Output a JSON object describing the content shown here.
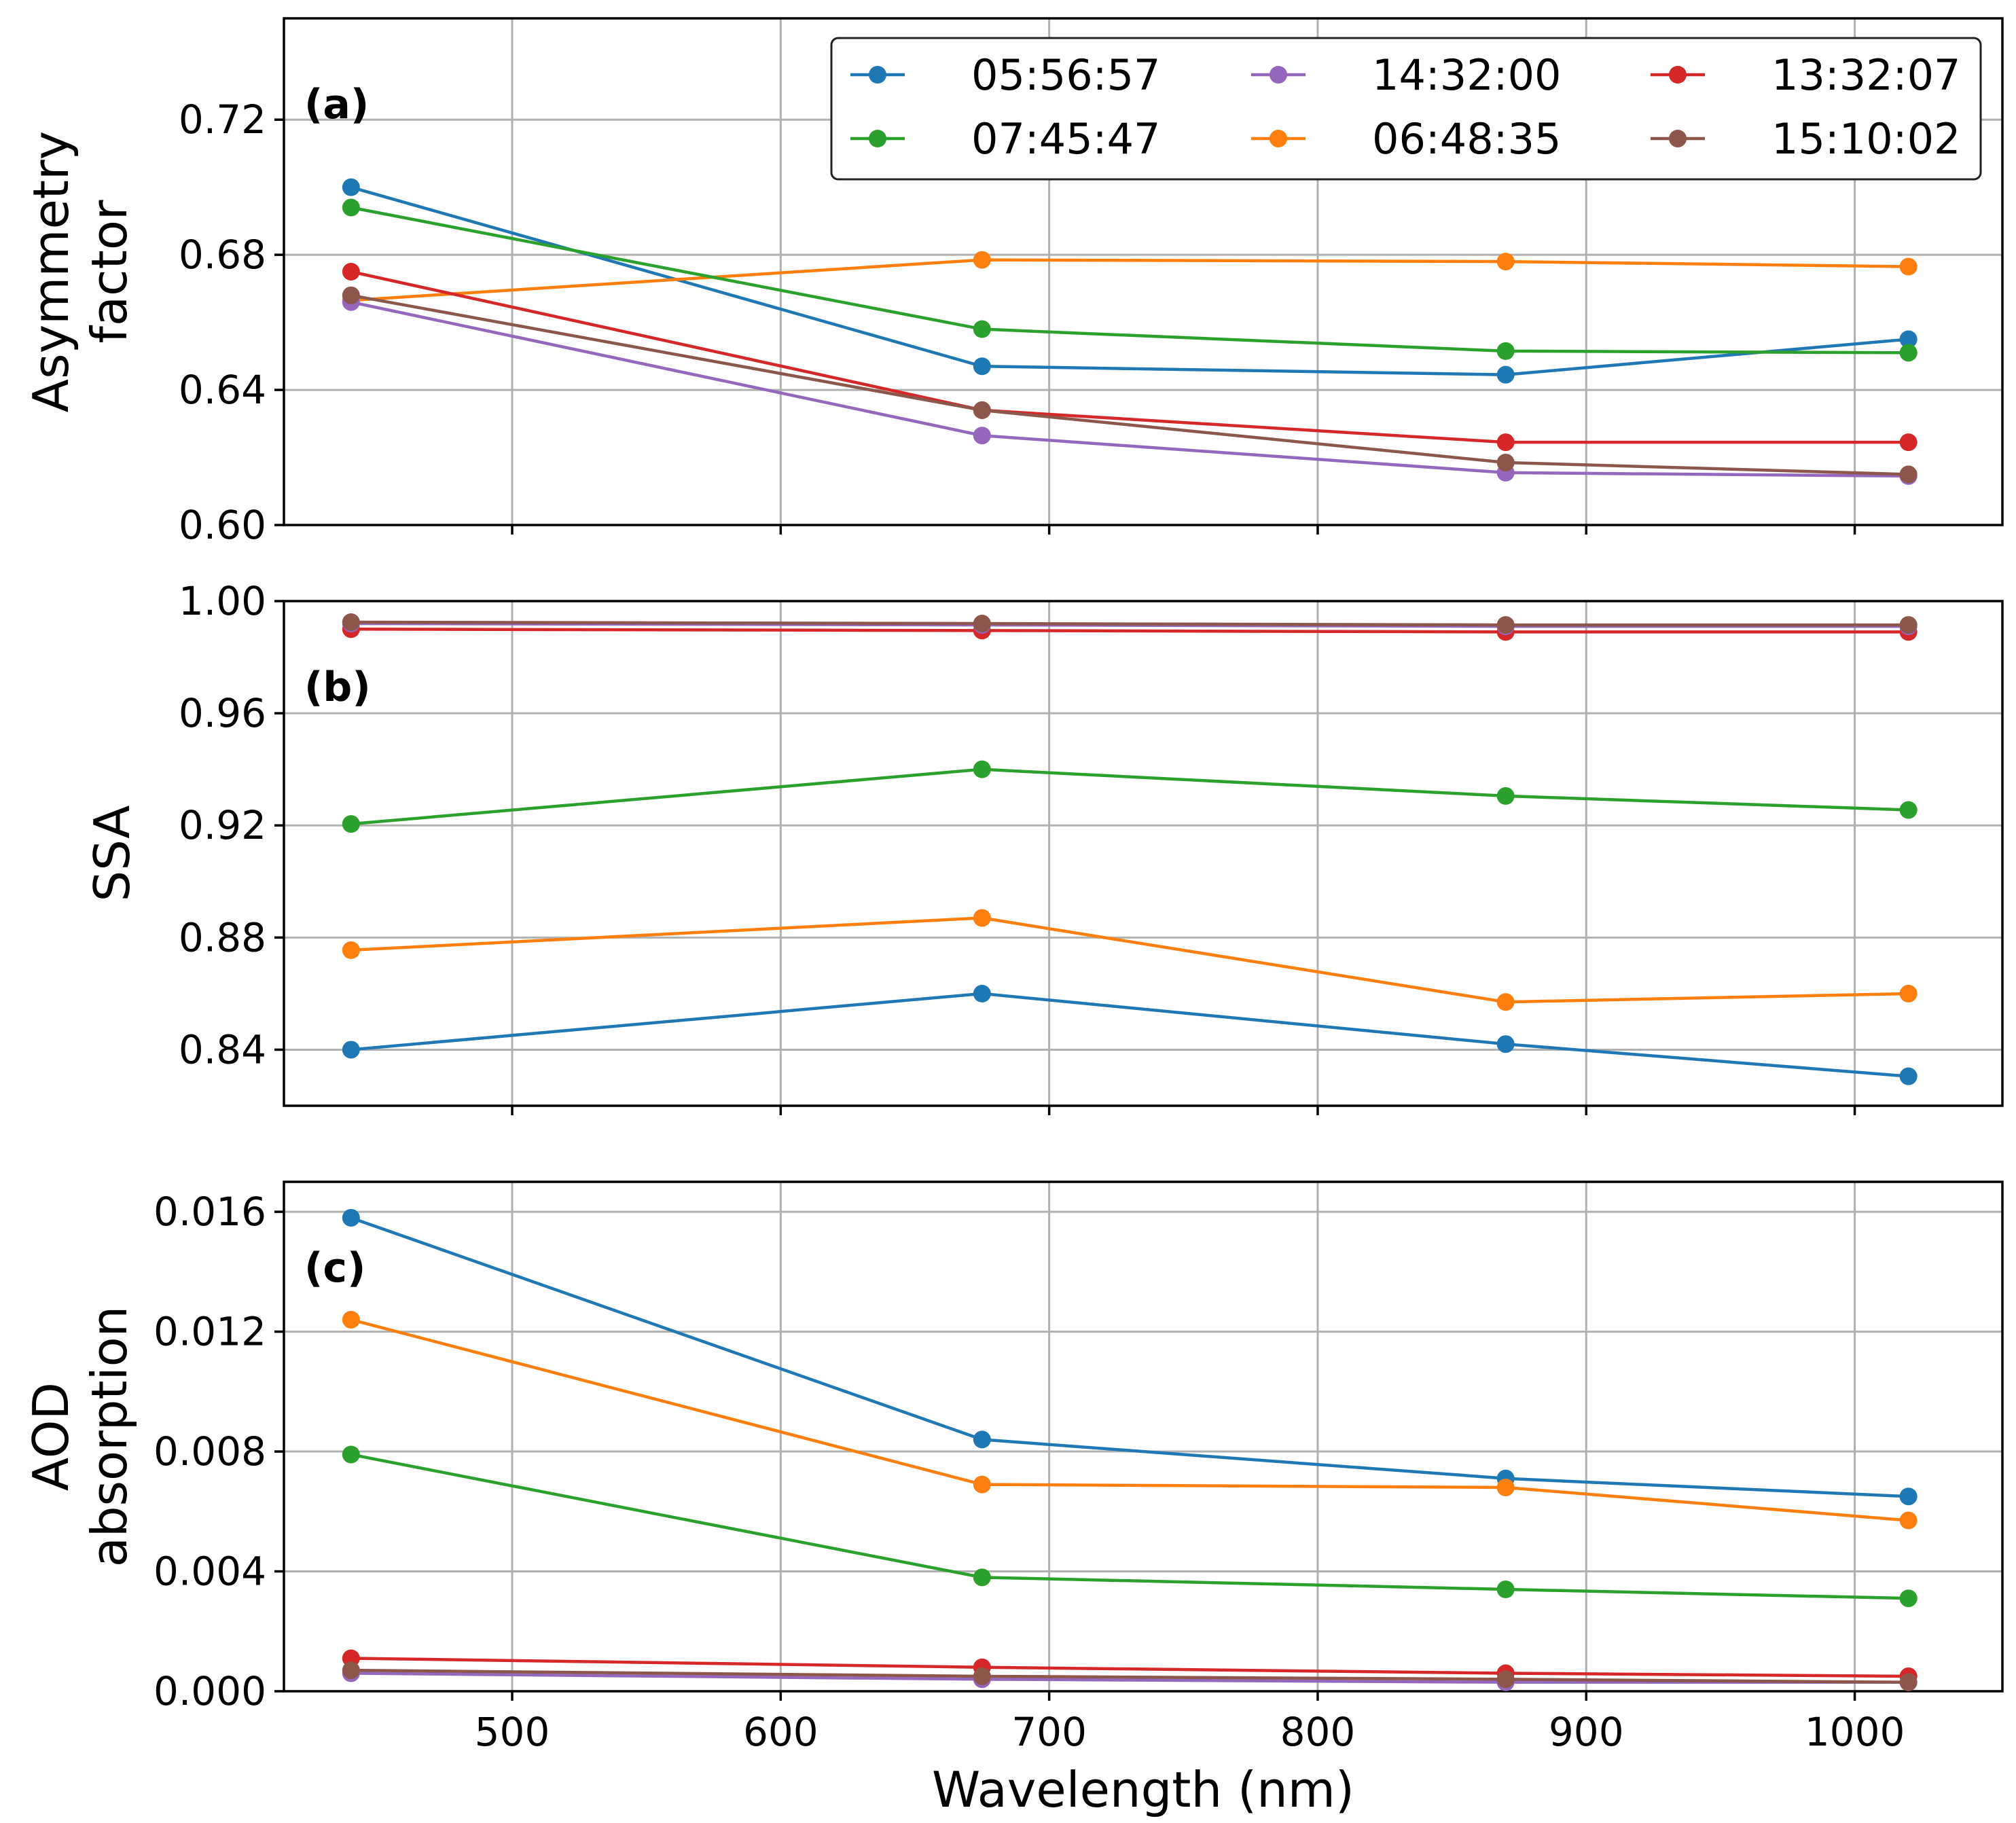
{
  "chart_data": {
    "type": "line",
    "xlabel": "Wavelength (nm)",
    "x": [
      440,
      675,
      870,
      1020
    ],
    "xlim": [
      415,
      1055
    ],
    "xticks": [
      {
        "value": 500,
        "label": "500"
      },
      {
        "value": 600,
        "label": "600"
      },
      {
        "value": 700,
        "label": "700"
      },
      {
        "value": 800,
        "label": "800"
      },
      {
        "value": 900,
        "label": "900"
      },
      {
        "value": 1000,
        "label": "1000"
      }
    ],
    "legend": {
      "placement": "top-right of panel (a)",
      "entries": [
        "05:56:57",
        "07:45:47",
        "14:32:00",
        "06:48:35",
        "13:32:07",
        "15:10:02"
      ]
    },
    "series_colors": {
      "05:56:57": "#1f77b4",
      "06:48:35": "#ff7f0e",
      "07:45:47": "#2ca02c",
      "13:32:07": "#d62728",
      "14:32:00": "#9467bd",
      "15:10:02": "#8c564b"
    },
    "panels": [
      {
        "id": "a",
        "label": "(a)",
        "ylabel": [
          "Asymmetry",
          "factor"
        ],
        "ylim": [
          0.6,
          0.75
        ],
        "yticks": [
          {
            "value": 0.6,
            "label": "0.60"
          },
          {
            "value": 0.64,
            "label": "0.64"
          },
          {
            "value": 0.68,
            "label": "0.68"
          },
          {
            "value": 0.72,
            "label": "0.72"
          }
        ],
        "series": [
          {
            "name": "05:56:57",
            "values": [
              0.7,
              0.647,
              0.6445,
              0.655
            ]
          },
          {
            "name": "06:48:35",
            "values": [
              0.6665,
              0.6785,
              0.678,
              0.6765
            ]
          },
          {
            "name": "07:45:47",
            "values": [
              0.694,
              0.658,
              0.6515,
              0.651
            ]
          },
          {
            "name": "13:32:07",
            "values": [
              0.675,
              0.634,
              0.6245,
              0.6245
            ]
          },
          {
            "name": "14:32:00",
            "values": [
              0.666,
              0.6265,
              0.6155,
              0.6145
            ]
          },
          {
            "name": "15:10:02",
            "values": [
              0.668,
              0.634,
              0.6185,
              0.615
            ]
          }
        ]
      },
      {
        "id": "b",
        "label": "(b)",
        "ylabel": [
          "SSA"
        ],
        "ylim": [
          0.82,
          1.0
        ],
        "yticks": [
          {
            "value": 0.84,
            "label": "0.84"
          },
          {
            "value": 0.88,
            "label": "0.88"
          },
          {
            "value": 0.92,
            "label": "0.92"
          },
          {
            "value": 0.96,
            "label": "0.96"
          },
          {
            "value": 1.0,
            "label": "1.00"
          }
        ],
        "series": [
          {
            "name": "05:56:57",
            "values": [
              0.84,
              0.86,
              0.842,
              0.8305
            ]
          },
          {
            "name": "06:48:35",
            "values": [
              0.8755,
              0.887,
              0.857,
              0.86
            ]
          },
          {
            "name": "07:45:47",
            "values": [
              0.9205,
              0.94,
              0.9305,
              0.9255
            ]
          },
          {
            "name": "13:32:07",
            "values": [
              0.99,
              0.9895,
              0.989,
              0.989
            ]
          },
          {
            "name": "14:32:00",
            "values": [
              0.992,
              0.9915,
              0.991,
              0.991
            ]
          },
          {
            "name": "15:10:02",
            "values": [
              0.9925,
              0.992,
              0.9915,
              0.9915
            ]
          }
        ]
      },
      {
        "id": "c",
        "label": "(c)",
        "ylabel": [
          "AOD",
          "absorption"
        ],
        "ylim": [
          0.0,
          0.017
        ],
        "yticks": [
          {
            "value": 0.0,
            "label": "0.000"
          },
          {
            "value": 0.004,
            "label": "0.004"
          },
          {
            "value": 0.008,
            "label": "0.008"
          },
          {
            "value": 0.012,
            "label": "0.012"
          },
          {
            "value": 0.016,
            "label": "0.016"
          }
        ],
        "series": [
          {
            "name": "05:56:57",
            "values": [
              0.0158,
              0.0084,
              0.0071,
              0.0065
            ]
          },
          {
            "name": "06:48:35",
            "values": [
              0.0124,
              0.0069,
              0.0068,
              0.0057
            ]
          },
          {
            "name": "07:45:47",
            "values": [
              0.0079,
              0.0038,
              0.0034,
              0.0031
            ]
          },
          {
            "name": "13:32:07",
            "values": [
              0.0011,
              0.0008,
              0.0006,
              0.0005
            ]
          },
          {
            "name": "14:32:00",
            "values": [
              0.0006,
              0.0004,
              0.0003,
              0.0003
            ]
          },
          {
            "name": "15:10:02",
            "values": [
              0.0007,
              0.0005,
              0.0004,
              0.0003
            ]
          }
        ]
      }
    ]
  }
}
